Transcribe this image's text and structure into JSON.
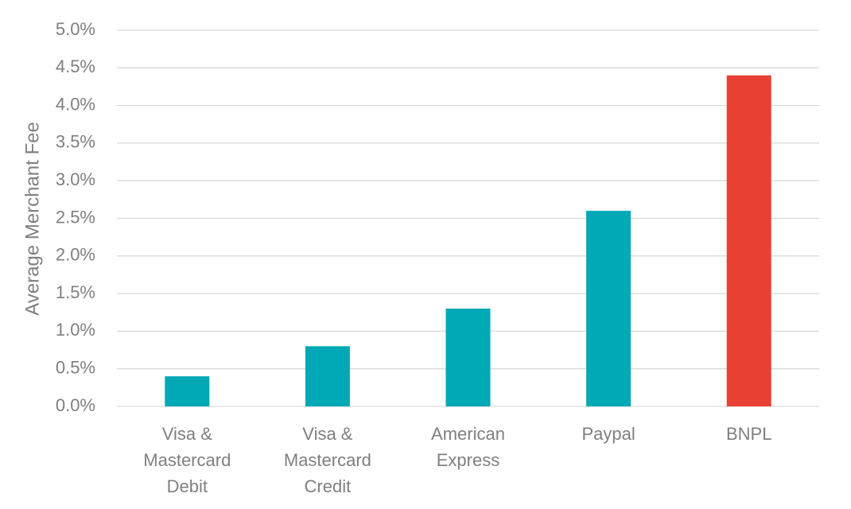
{
  "chart_data": {
    "type": "bar",
    "y_label": "Average Merchant Fee",
    "categories": [
      [
        "Visa &",
        "Mastercard",
        "Debit"
      ],
      [
        "Visa &",
        "Mastercard",
        "Credit"
      ],
      [
        "American",
        "Express"
      ],
      [
        "Paypal"
      ],
      [
        "BNPL"
      ]
    ],
    "values": [
      0.4,
      0.8,
      1.3,
      2.6,
      4.4
    ],
    "colors": [
      "#00a9b5",
      "#00a9b5",
      "#00a9b5",
      "#00a9b5",
      "#e84133"
    ],
    "ylim": [
      0,
      5
    ],
    "yticks": [
      {
        "value": 0,
        "label": "0.0%"
      },
      {
        "value": 0.5,
        "label": "0.5%"
      },
      {
        "value": 1,
        "label": "1.0%"
      },
      {
        "value": 1.5,
        "label": "1.5%"
      },
      {
        "value": 2,
        "label": "2.0%"
      },
      {
        "value": 2.5,
        "label": "2.5%"
      },
      {
        "value": 3,
        "label": "3.0%"
      },
      {
        "value": 3.5,
        "label": "3.5%"
      },
      {
        "value": 4,
        "label": "4.0%"
      },
      {
        "value": 4.5,
        "label": "4.5%"
      },
      {
        "value": 5,
        "label": "5.0%"
      }
    ],
    "grid": true
  }
}
